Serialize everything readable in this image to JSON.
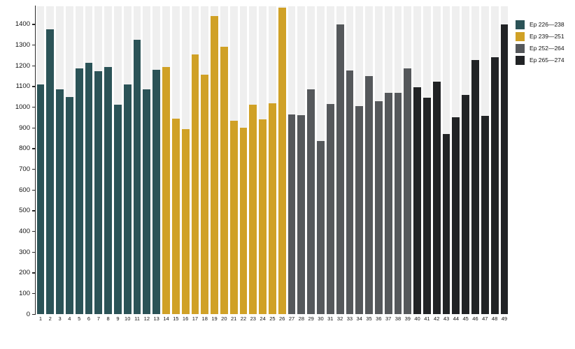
{
  "chart_data": {
    "type": "bar",
    "title": "",
    "xlabel": "",
    "ylabel": "",
    "ylim": [
      0,
      1490
    ],
    "y_ticks": [
      0,
      100,
      200,
      300,
      400,
      500,
      600,
      700,
      800,
      900,
      1000,
      1100,
      1200,
      1300,
      1400
    ],
    "grid": false,
    "legend_position": "top-right",
    "stripe_color": "#efefef",
    "axis_color": "#2a2a2a",
    "categories": [
      "1",
      "2",
      "3",
      "4",
      "5",
      "6",
      "7",
      "8",
      "9",
      "10",
      "11",
      "12",
      "13",
      "14",
      "15",
      "16",
      "17",
      "18",
      "19",
      "20",
      "21",
      "22",
      "23",
      "24",
      "25",
      "26",
      "27",
      "28",
      "29",
      "30",
      "31",
      "32",
      "33",
      "34",
      "35",
      "36",
      "37",
      "38",
      "39",
      "40",
      "41",
      "42",
      "43",
      "44",
      "45",
      "46",
      "47",
      "48",
      "49"
    ],
    "series": [
      {
        "name": "Ep 226—238",
        "color": "#2b5357",
        "values": [
          1110,
          1375,
          1085,
          1050,
          1185,
          1215,
          1172,
          1195,
          1012,
          1110,
          1325,
          1085,
          1180
        ]
      },
      {
        "name": "Ep 239—251",
        "color": "#d0a126",
        "values": [
          1195,
          945,
          895,
          1255,
          1158,
          1440,
          1290,
          935,
          900,
          1010,
          940,
          1018,
          1480
        ]
      },
      {
        "name": "Ep 252—264",
        "color": "#55585b",
        "values": [
          965,
          960,
          1085,
          835,
          1015,
          1400,
          1175,
          1005,
          1148,
          1028,
          1068,
          1068,
          1185
        ]
      },
      {
        "name": "Ep 265—274",
        "color": "#212325",
        "values": [
          1095,
          1045,
          1122,
          870,
          950,
          1058,
          1228,
          958,
          1242,
          1400
        ]
      }
    ]
  }
}
